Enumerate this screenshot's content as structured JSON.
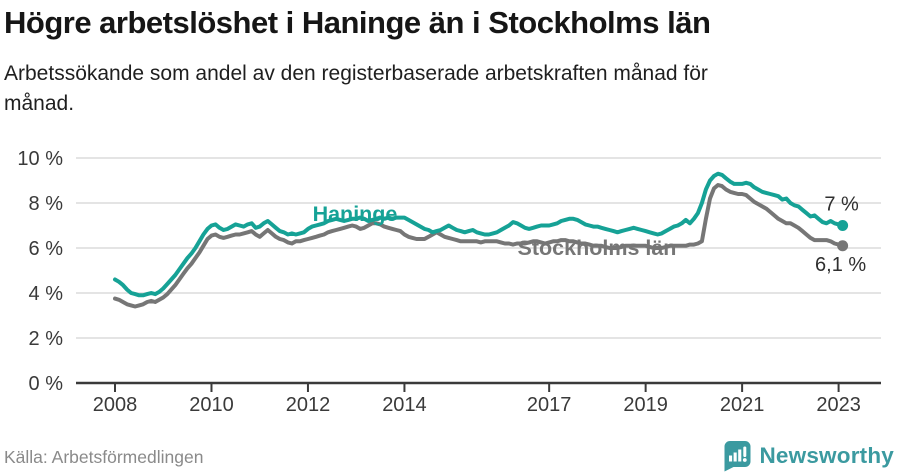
{
  "header": {
    "title": "Högre arbetslöshet i Haninge än i Stockholms län",
    "subtitle_line1": "Arbetssökande som andel av den registerbaserade arbetskraften månad för",
    "subtitle_line2": "månad."
  },
  "footer": {
    "source": "Källa: Arbetsförmedlingen",
    "brand": "Newsworthy"
  },
  "colors": {
    "haninge": "#16a296",
    "stockholm": "#767676",
    "grid": "#dcdcdc",
    "axis": "#3a3a3a",
    "tick_text": "#3a3a3a",
    "end_label_text": "#2f2f2f",
    "logo": "#3b9aa0"
  },
  "chart_data": {
    "type": "line",
    "title": "Högre arbetslöshet i Haninge än i Stockholms län",
    "subtitle": "Arbetssökande som andel av den registerbaserade arbetskraften månad för månad.",
    "x_unit": "month",
    "x_start": "2008-01",
    "x_end": "2023-02",
    "ylim": [
      0,
      10
    ],
    "grid": "horizontal",
    "legend_position": "inline-labels",
    "y_ticks": [
      {
        "value": 0,
        "label": "0 %"
      },
      {
        "value": 2,
        "label": "2 %"
      },
      {
        "value": 4,
        "label": "4 %"
      },
      {
        "value": 6,
        "label": "6 %"
      },
      {
        "value": 8,
        "label": "8 %"
      },
      {
        "value": 10,
        "label": "10 %"
      }
    ],
    "x_ticks": [
      {
        "month_index": 0,
        "label": "2008"
      },
      {
        "month_index": 24,
        "label": "2010"
      },
      {
        "month_index": 48,
        "label": "2012"
      },
      {
        "month_index": 72,
        "label": "2014"
      },
      {
        "month_index": 108,
        "label": "2017"
      },
      {
        "month_index": 132,
        "label": "2019"
      },
      {
        "month_index": 156,
        "label": "2021"
      },
      {
        "month_index": 180,
        "label": "2023"
      }
    ],
    "series": [
      {
        "name": "Haninge",
        "color": "#16a296",
        "end_label": "7 %",
        "end_value": 7.0,
        "values": [
          4.6,
          4.5,
          4.35,
          4.15,
          4.0,
          3.95,
          3.9,
          3.9,
          3.95,
          4.0,
          3.95,
          4.05,
          4.2,
          4.4,
          4.6,
          4.8,
          5.05,
          5.3,
          5.55,
          5.75,
          6.0,
          6.3,
          6.6,
          6.85,
          7.0,
          7.05,
          6.9,
          6.8,
          6.85,
          6.95,
          7.05,
          7.0,
          6.95,
          7.05,
          7.1,
          6.9,
          6.95,
          7.1,
          7.2,
          7.05,
          6.9,
          6.75,
          6.7,
          6.6,
          6.65,
          6.6,
          6.65,
          6.7,
          6.85,
          6.95,
          7.0,
          7.05,
          7.1,
          7.2,
          7.25,
          7.3,
          7.25,
          7.2,
          7.25,
          7.3,
          7.3,
          7.35,
          7.3,
          7.2,
          7.25,
          7.3,
          7.35,
          7.3,
          7.35,
          7.3,
          7.35,
          7.35,
          7.35,
          7.25,
          7.15,
          7.05,
          6.95,
          6.85,
          6.8,
          6.7,
          6.75,
          6.8,
          6.9,
          7.0,
          6.9,
          6.8,
          6.75,
          6.7,
          6.75,
          6.8,
          6.7,
          6.65,
          6.6,
          6.6,
          6.65,
          6.7,
          6.8,
          6.9,
          7.0,
          7.15,
          7.1,
          7.0,
          6.9,
          6.85,
          6.9,
          6.95,
          7.0,
          7.0,
          7.0,
          7.05,
          7.1,
          7.2,
          7.25,
          7.3,
          7.3,
          7.25,
          7.15,
          7.05,
          7.0,
          6.95,
          6.95,
          6.9,
          6.85,
          6.8,
          6.75,
          6.7,
          6.75,
          6.8,
          6.85,
          6.9,
          6.85,
          6.8,
          6.75,
          6.7,
          6.65,
          6.6,
          6.65,
          6.75,
          6.85,
          6.95,
          7.0,
          7.1,
          7.25,
          7.1,
          7.3,
          7.55,
          8.0,
          8.6,
          9.0,
          9.2,
          9.3,
          9.25,
          9.1,
          8.95,
          8.85,
          8.85,
          8.85,
          8.9,
          8.85,
          8.7,
          8.6,
          8.5,
          8.45,
          8.4,
          8.35,
          8.3,
          8.15,
          8.2,
          8.0,
          7.9,
          7.85,
          7.7,
          7.55,
          7.4,
          7.45,
          7.3,
          7.15,
          7.1,
          7.2,
          7.1,
          7.05,
          7.0
        ]
      },
      {
        "name": "Stockholms län",
        "color": "#767676",
        "end_label": "6,1 %",
        "end_value": 6.1,
        "values": [
          3.75,
          3.7,
          3.6,
          3.5,
          3.45,
          3.4,
          3.45,
          3.5,
          3.6,
          3.65,
          3.6,
          3.7,
          3.8,
          3.95,
          4.15,
          4.35,
          4.6,
          4.85,
          5.1,
          5.3,
          5.55,
          5.8,
          6.1,
          6.4,
          6.55,
          6.6,
          6.5,
          6.45,
          6.5,
          6.55,
          6.6,
          6.6,
          6.65,
          6.7,
          6.75,
          6.6,
          6.5,
          6.65,
          6.8,
          6.65,
          6.5,
          6.4,
          6.35,
          6.25,
          6.2,
          6.3,
          6.3,
          6.35,
          6.4,
          6.45,
          6.5,
          6.55,
          6.6,
          6.7,
          6.75,
          6.8,
          6.85,
          6.9,
          6.95,
          7.0,
          6.95,
          6.85,
          6.9,
          7.0,
          7.1,
          7.1,
          7.05,
          6.95,
          6.9,
          6.85,
          6.8,
          6.75,
          6.6,
          6.5,
          6.45,
          6.4,
          6.4,
          6.4,
          6.5,
          6.6,
          6.7,
          6.6,
          6.5,
          6.45,
          6.4,
          6.35,
          6.3,
          6.3,
          6.3,
          6.3,
          6.3,
          6.25,
          6.3,
          6.3,
          6.3,
          6.3,
          6.25,
          6.2,
          6.2,
          6.15,
          6.2,
          6.2,
          6.2,
          6.25,
          6.3,
          6.3,
          6.25,
          6.2,
          6.25,
          6.3,
          6.3,
          6.35,
          6.35,
          6.3,
          6.3,
          6.25,
          6.2,
          6.2,
          6.15,
          6.1,
          6.1,
          6.1,
          6.05,
          6.0,
          6.0,
          6.0,
          6.05,
          6.1,
          6.1,
          6.1,
          6.1,
          6.1,
          6.1,
          6.05,
          6.0,
          6.0,
          6.0,
          6.05,
          6.1,
          6.1,
          6.1,
          6.1,
          6.1,
          6.15,
          6.15,
          6.2,
          6.3,
          7.3,
          8.2,
          8.65,
          8.8,
          8.75,
          8.6,
          8.5,
          8.45,
          8.4,
          8.4,
          8.35,
          8.2,
          8.05,
          7.95,
          7.85,
          7.75,
          7.6,
          7.45,
          7.3,
          7.2,
          7.1,
          7.1,
          7.0,
          6.9,
          6.75,
          6.6,
          6.45,
          6.35,
          6.35,
          6.35,
          6.35,
          6.3,
          6.2,
          6.15,
          6.1
        ]
      }
    ]
  }
}
